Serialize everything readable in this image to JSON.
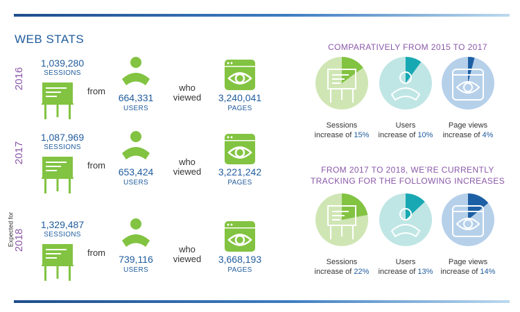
{
  "title": "WEB STATS",
  "rows": [
    {
      "year": "2016",
      "expected": "",
      "sessions": "1,039,280",
      "users": "664,331",
      "pages": "3,240,041"
    },
    {
      "year": "2017",
      "expected": "",
      "sessions": "1,087,969",
      "users": "653,424",
      "pages": "3,221,242"
    },
    {
      "year": "2018",
      "expected": "Expected for",
      "sessions": "1,329,487",
      "users": "739,116",
      "pages": "3,668,193"
    }
  ],
  "labels": {
    "sessions": "SESSIONS",
    "users": "USERS",
    "pages": "PAGES",
    "from": "from",
    "who": "who",
    "viewed": "viewed"
  },
  "sections": [
    {
      "heading_line1": "COMPARATIVELY FROM 2015 TO 2017",
      "heading_line2": ""
    },
    {
      "heading_line1": "FROM 2017 TO 2018, WE’RE CURRENTLY",
      "heading_line2": "TRACKING FOR THE FOLLOWING INCREASES"
    }
  ],
  "colors": {
    "blue": "#1f5b9c",
    "purple": "#8a57a8",
    "green": "#82c341",
    "light_green": "#cfe6b4",
    "teal": "#17a8b3",
    "light_teal": "#bfe6e4",
    "navy": "#1d5fa4",
    "light_blue": "#b6d0ea"
  },
  "chart_data": [
    {
      "type": "pie",
      "title": "COMPARATIVELY FROM 2015 TO 2017",
      "series": [
        {
          "name": "Sessions",
          "caption": "increase of",
          "label": "15%",
          "value": 15
        },
        {
          "name": "Users",
          "caption": "increase of",
          "label": "10%",
          "value": 10
        },
        {
          "name": "Page views",
          "caption": "increase of",
          "label": "4%",
          "value": 4
        }
      ]
    },
    {
      "type": "pie",
      "title": "FROM 2017 TO 2018, WE’RE CURRENTLY TRACKING FOR THE FOLLOWING INCREASES",
      "series": [
        {
          "name": "Sessions",
          "caption": "increase of",
          "label": "22%",
          "value": 22
        },
        {
          "name": "Users",
          "caption": "increase of",
          "label": "13%",
          "value": 13
        },
        {
          "name": "Page views",
          "caption": "increase of",
          "label": "14%",
          "value": 14
        }
      ]
    }
  ]
}
